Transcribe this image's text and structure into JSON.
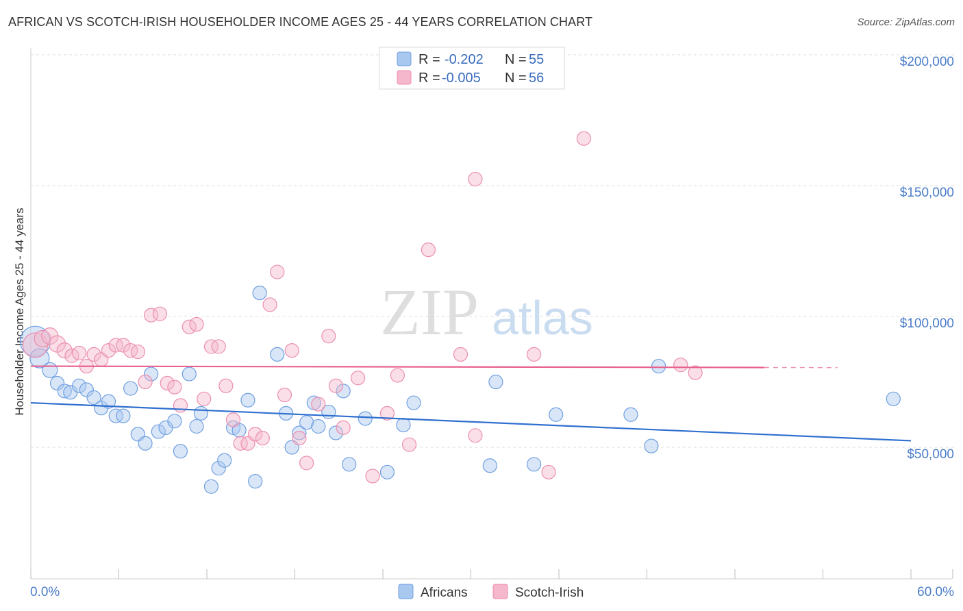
{
  "header": {
    "title": "AFRICAN VS SCOTCH-IRISH HOUSEHOLDER INCOME AGES 25 - 44 YEARS CORRELATION CHART",
    "source": "Source: ZipAtlas.com"
  },
  "watermark": {
    "zip": "ZIP",
    "atlas": "atlas"
  },
  "stats_legend": {
    "rows": [
      {
        "r_label": "R =",
        "r_value": "-0.202",
        "n_label": "N =",
        "n_value": "55",
        "color": "#a9c8f0"
      },
      {
        "r_label": "R =",
        "r_value": "-0.005",
        "n_label": "N =",
        "n_value": "56",
        "color": "#f5b7cb"
      }
    ]
  },
  "chart_data": {
    "type": "scatter",
    "ylabel": "Householder Income Ages 25 - 44 years",
    "x_tick_labels": {
      "min": "0.0%",
      "max": "60.0%"
    },
    "y_tick_labels": [
      "$50,000",
      "$100,000",
      "$150,000",
      "$200,000"
    ],
    "y_ticks": [
      50000,
      100000,
      150000,
      200000
    ],
    "xlim": [
      0,
      60
    ],
    "ylim": [
      0,
      205000
    ],
    "grid": "horizontal dashed",
    "legend_position": "top-center",
    "series": [
      {
        "name": "Africans",
        "color": "#a9c8f0",
        "stroke": "#6f9fe0",
        "trend": {
          "x": [
            0,
            60
          ],
          "y": [
            67000,
            52500
          ],
          "color": "#2f6fcf"
        },
        "points": [
          [
            0.3,
            90500,
            22
          ],
          [
            0.6,
            84000,
            14
          ],
          [
            1.3,
            79500,
            11
          ],
          [
            1.8,
            74500,
            10
          ],
          [
            2.3,
            71500,
            10
          ],
          [
            2.7,
            71000,
            10
          ],
          [
            3.3,
            73500,
            10
          ],
          [
            3.8,
            72000,
            10
          ],
          [
            4.3,
            69000,
            10
          ],
          [
            4.8,
            65000,
            10
          ],
          [
            5.3,
            67500,
            10
          ],
          [
            5.8,
            62000,
            10
          ],
          [
            6.3,
            62000,
            10
          ],
          [
            6.8,
            72500,
            10
          ],
          [
            7.3,
            55000,
            10
          ],
          [
            7.8,
            51500,
            10
          ],
          [
            8.2,
            78000,
            10
          ],
          [
            8.7,
            56000,
            10
          ],
          [
            9.2,
            57500,
            10
          ],
          [
            9.8,
            60000,
            10
          ],
          [
            10.2,
            48500,
            10
          ],
          [
            10.8,
            78000,
            10
          ],
          [
            11.3,
            58000,
            10
          ],
          [
            11.6,
            63000,
            10
          ],
          [
            12.3,
            35000,
            10
          ],
          [
            12.8,
            42000,
            10
          ],
          [
            13.2,
            45000,
            10
          ],
          [
            13.8,
            57500,
            10
          ],
          [
            14.2,
            56500,
            10
          ],
          [
            14.8,
            68000,
            10
          ],
          [
            15.3,
            37000,
            10
          ],
          [
            15.6,
            109000,
            10
          ],
          [
            16.8,
            85500,
            10
          ],
          [
            17.4,
            63000,
            10
          ],
          [
            17.8,
            50000,
            10
          ],
          [
            18.3,
            55500,
            10
          ],
          [
            18.8,
            59500,
            10
          ],
          [
            19.3,
            67000,
            10
          ],
          [
            19.6,
            58000,
            10
          ],
          [
            20.3,
            63500,
            10
          ],
          [
            20.8,
            55500,
            10
          ],
          [
            21.3,
            71500,
            10
          ],
          [
            21.7,
            43500,
            10
          ],
          [
            22.8,
            61000,
            10
          ],
          [
            24.3,
            40500,
            10
          ],
          [
            25.4,
            58500,
            10
          ],
          [
            26.1,
            67000,
            10
          ],
          [
            31.3,
            43000,
            10
          ],
          [
            31.7,
            75000,
            10
          ],
          [
            34.3,
            43500,
            10
          ],
          [
            35.8,
            62500,
            10
          ],
          [
            40.9,
            62500,
            10
          ],
          [
            42.3,
            50500,
            10
          ],
          [
            42.8,
            81000,
            10
          ],
          [
            58.8,
            68500,
            10
          ]
        ]
      },
      {
        "name": "Scotch-Irish",
        "color": "#f5b7cb",
        "stroke": "#ec8eae",
        "trend": {
          "x": [
            0,
            50
          ],
          "y": [
            81000,
            80500
          ],
          "color": "#e8628f",
          "dashed_to": 55
        },
        "points": [
          [
            0.3,
            89000,
            18
          ],
          [
            0.8,
            91500,
            12
          ],
          [
            1.3,
            92500,
            12
          ],
          [
            1.8,
            89500,
            12
          ],
          [
            2.3,
            87000,
            11
          ],
          [
            2.8,
            85000,
            10
          ],
          [
            3.3,
            86000,
            10
          ],
          [
            3.8,
            81000,
            10
          ],
          [
            4.3,
            85500,
            10
          ],
          [
            4.8,
            83500,
            10
          ],
          [
            5.3,
            87000,
            10
          ],
          [
            5.8,
            89000,
            10
          ],
          [
            6.3,
            89000,
            10
          ],
          [
            6.8,
            87000,
            10
          ],
          [
            7.3,
            86500,
            10
          ],
          [
            7.8,
            75000,
            10
          ],
          [
            8.2,
            100500,
            10
          ],
          [
            8.8,
            101000,
            10
          ],
          [
            9.3,
            74500,
            10
          ],
          [
            9.8,
            73000,
            10
          ],
          [
            10.2,
            66000,
            10
          ],
          [
            10.8,
            96000,
            10
          ],
          [
            11.3,
            97000,
            10
          ],
          [
            11.8,
            68500,
            10
          ],
          [
            12.3,
            88500,
            10
          ],
          [
            12.8,
            88500,
            10
          ],
          [
            13.3,
            73500,
            10
          ],
          [
            13.8,
            60500,
            10
          ],
          [
            14.3,
            51500,
            10
          ],
          [
            14.8,
            51500,
            10
          ],
          [
            15.3,
            55000,
            10
          ],
          [
            15.8,
            53500,
            10
          ],
          [
            16.3,
            104500,
            10
          ],
          [
            16.8,
            117000,
            10
          ],
          [
            17.3,
            70000,
            10
          ],
          [
            17.8,
            87000,
            10
          ],
          [
            18.3,
            53500,
            10
          ],
          [
            18.8,
            44000,
            10
          ],
          [
            19.6,
            66500,
            10
          ],
          [
            20.3,
            92500,
            10
          ],
          [
            20.8,
            73500,
            10
          ],
          [
            21.3,
            57500,
            10
          ],
          [
            22.3,
            76500,
            10
          ],
          [
            23.3,
            39000,
            10
          ],
          [
            24.3,
            63000,
            10
          ],
          [
            25.0,
            77500,
            10
          ],
          [
            25.8,
            51000,
            10
          ],
          [
            27.1,
            125500,
            10
          ],
          [
            29.3,
            85500,
            10
          ],
          [
            30.3,
            54500,
            10
          ],
          [
            30.3,
            152500,
            10
          ],
          [
            34.3,
            85500,
            10
          ],
          [
            35.3,
            40500,
            10
          ],
          [
            37.7,
            168000,
            10
          ],
          [
            44.3,
            81500,
            10
          ],
          [
            45.3,
            78500,
            10
          ]
        ]
      }
    ]
  }
}
